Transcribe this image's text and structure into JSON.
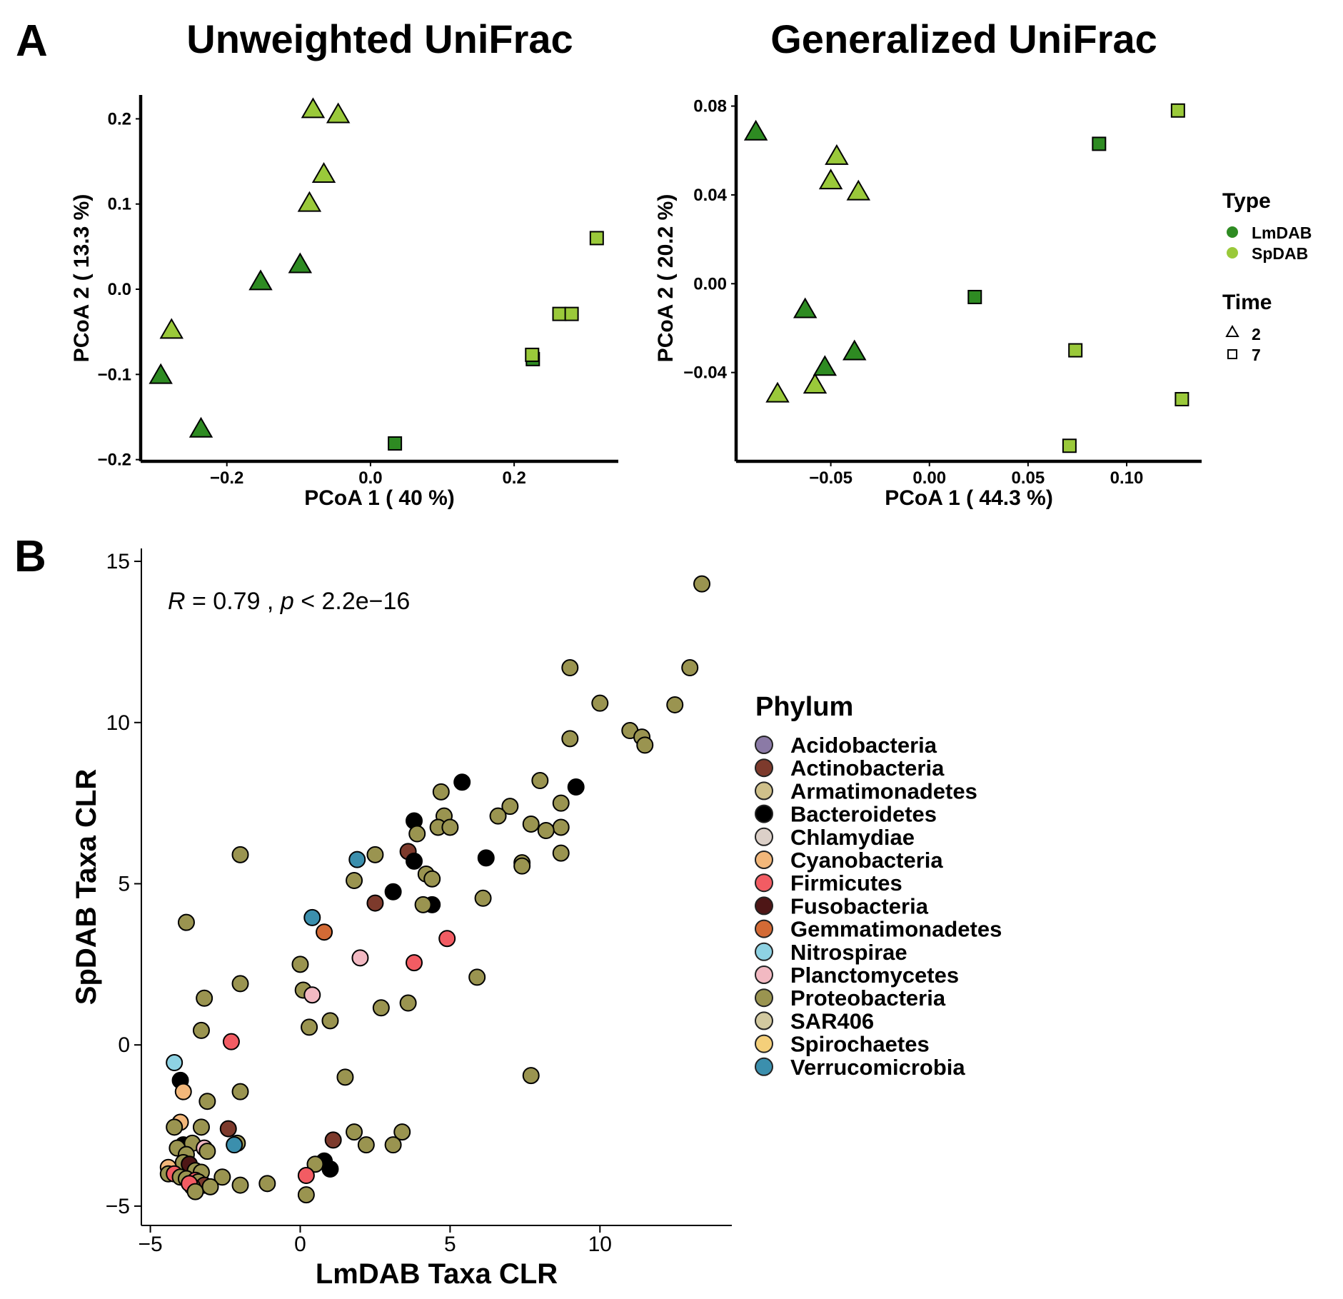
{
  "panel_labels": {
    "a": "A",
    "b": "B"
  },
  "chart_data": [
    {
      "type": "scatter",
      "title": "Unweighted UniFrac",
      "xlabel": "PCoA 1 ( 40 %)",
      "ylabel": "PCoA 2 ( 13.3 %)",
      "xlim": [
        -0.32,
        0.345
      ],
      "ylim": [
        -0.202,
        0.228
      ],
      "xticks": [
        -0.2,
        0.0,
        0.2
      ],
      "xtick_labels": [
        "−0.2",
        "0.0",
        "0.2"
      ],
      "yticks": [
        -0.2,
        -0.1,
        0.0,
        0.1,
        0.2
      ],
      "ytick_labels": [
        "−0.2",
        "−0.1",
        "0.0",
        "0.1",
        "0.2"
      ],
      "grid": false,
      "points": [
        {
          "x": -0.08,
          "y": 0.21,
          "type": "SpDAB",
          "time": "2"
        },
        {
          "x": -0.045,
          "y": 0.204,
          "type": "SpDAB",
          "time": "2"
        },
        {
          "x": -0.065,
          "y": 0.134,
          "type": "SpDAB",
          "time": "2"
        },
        {
          "x": -0.085,
          "y": 0.1,
          "type": "SpDAB",
          "time": "2"
        },
        {
          "x": -0.098,
          "y": 0.028,
          "type": "LmDAB",
          "time": "2"
        },
        {
          "x": -0.153,
          "y": 0.008,
          "type": "LmDAB",
          "time": "2"
        },
        {
          "x": -0.277,
          "y": -0.049,
          "type": "SpDAB",
          "time": "2"
        },
        {
          "x": -0.292,
          "y": -0.102,
          "type": "LmDAB",
          "time": "2"
        },
        {
          "x": -0.236,
          "y": -0.165,
          "type": "LmDAB",
          "time": "2"
        },
        {
          "x": 0.315,
          "y": 0.06,
          "type": "SpDAB",
          "time": "7"
        },
        {
          "x": 0.263,
          "y": -0.029,
          "type": "SpDAB",
          "time": "7"
        },
        {
          "x": 0.28,
          "y": -0.029,
          "type": "SpDAB",
          "time": "7"
        },
        {
          "x": 0.226,
          "y": -0.082,
          "type": "LmDAB",
          "time": "7"
        },
        {
          "x": 0.225,
          "y": -0.077,
          "type": "SpDAB",
          "time": "7"
        },
        {
          "x": 0.034,
          "y": -0.181,
          "type": "LmDAB",
          "time": "7"
        }
      ]
    },
    {
      "type": "scatter",
      "title": "Generalized UniFrac",
      "xlabel": "PCoA 1 ( 44.3 %)",
      "ylabel": "PCoA 2 ( 20.2 %)",
      "xlim": [
        -0.098,
        0.138
      ],
      "ylim": [
        -0.08,
        0.085
      ],
      "xticks": [
        -0.05,
        0.0,
        0.05,
        0.1
      ],
      "xtick_labels": [
        "−0.05",
        "0.00",
        "0.05",
        "0.10"
      ],
      "yticks": [
        -0.04,
        0.0,
        0.04,
        0.08
      ],
      "ytick_labels": [
        "−0.04",
        "0.00",
        "0.04",
        "0.08"
      ],
      "grid": false,
      "points": [
        {
          "x": -0.088,
          "y": 0.068,
          "type": "LmDAB",
          "time": "2"
        },
        {
          "x": -0.047,
          "y": 0.057,
          "type": "SpDAB",
          "time": "2"
        },
        {
          "x": -0.05,
          "y": 0.046,
          "type": "SpDAB",
          "time": "2"
        },
        {
          "x": -0.036,
          "y": 0.041,
          "type": "SpDAB",
          "time": "2"
        },
        {
          "x": -0.063,
          "y": -0.012,
          "type": "LmDAB",
          "time": "2"
        },
        {
          "x": -0.038,
          "y": -0.031,
          "type": "LmDAB",
          "time": "2"
        },
        {
          "x": -0.053,
          "y": -0.038,
          "type": "LmDAB",
          "time": "2"
        },
        {
          "x": -0.058,
          "y": -0.046,
          "type": "SpDAB",
          "time": "2"
        },
        {
          "x": -0.077,
          "y": -0.05,
          "type": "SpDAB",
          "time": "2"
        },
        {
          "x": 0.126,
          "y": 0.078,
          "type": "SpDAB",
          "time": "7"
        },
        {
          "x": 0.086,
          "y": 0.063,
          "type": "LmDAB",
          "time": "7"
        },
        {
          "x": 0.023,
          "y": -0.006,
          "type": "LmDAB",
          "time": "7"
        },
        {
          "x": 0.074,
          "y": -0.03,
          "type": "SpDAB",
          "time": "7"
        },
        {
          "x": 0.128,
          "y": -0.052,
          "type": "SpDAB",
          "time": "7"
        },
        {
          "x": 0.071,
          "y": -0.073,
          "type": "SpDAB",
          "time": "7"
        }
      ]
    },
    {
      "type": "scatter",
      "title": "",
      "xlabel": "LmDAB Taxa CLR",
      "ylabel": "SpDAB Taxa CLR",
      "xlim": [
        -5.3,
        14.4
      ],
      "ylim": [
        -5.6,
        15.4
      ],
      "xticks": [
        -5,
        0,
        5,
        10
      ],
      "xtick_labels": [
        "−5",
        "0",
        "5",
        "10"
      ],
      "yticks": [
        -5,
        0,
        5,
        10,
        15
      ],
      "ytick_labels": [
        "−5",
        "0",
        "5",
        "10",
        "15"
      ],
      "grid": false,
      "annotation": {
        "r_label": "R",
        "r_text": " = 0.79 , ",
        "p_label": "p",
        "p_text": " < 2.2e−16"
      },
      "points": [
        {
          "x": 13.4,
          "y": 14.3,
          "phylum": "Proteobacteria"
        },
        {
          "x": 9.0,
          "y": 11.7,
          "phylum": "Proteobacteria"
        },
        {
          "x": 13.0,
          "y": 11.7,
          "phylum": "Proteobacteria"
        },
        {
          "x": 10.0,
          "y": 10.6,
          "phylum": "Proteobacteria"
        },
        {
          "x": 12.5,
          "y": 10.55,
          "phylum": "Proteobacteria"
        },
        {
          "x": 11.0,
          "y": 9.75,
          "phylum": "Proteobacteria"
        },
        {
          "x": 11.4,
          "y": 9.55,
          "phylum": "Proteobacteria"
        },
        {
          "x": 11.5,
          "y": 9.3,
          "phylum": "Proteobacteria"
        },
        {
          "x": 9.0,
          "y": 9.5,
          "phylum": "Proteobacteria"
        },
        {
          "x": 8.0,
          "y": 8.2,
          "phylum": "Proteobacteria"
        },
        {
          "x": 9.2,
          "y": 8.0,
          "phylum": "Bacteroidetes"
        },
        {
          "x": 5.4,
          "y": 8.15,
          "phylum": "Bacteroidetes"
        },
        {
          "x": 4.7,
          "y": 7.85,
          "phylum": "Proteobacteria"
        },
        {
          "x": 8.7,
          "y": 7.5,
          "phylum": "Proteobacteria"
        },
        {
          "x": 7.0,
          "y": 7.4,
          "phylum": "Proteobacteria"
        },
        {
          "x": 6.6,
          "y": 7.1,
          "phylum": "Proteobacteria"
        },
        {
          "x": 4.8,
          "y": 7.1,
          "phylum": "Proteobacteria"
        },
        {
          "x": 3.8,
          "y": 6.95,
          "phylum": "Bacteroidetes"
        },
        {
          "x": 7.7,
          "y": 6.85,
          "phylum": "Proteobacteria"
        },
        {
          "x": 4.6,
          "y": 6.75,
          "phylum": "Proteobacteria"
        },
        {
          "x": 5.0,
          "y": 6.75,
          "phylum": "Proteobacteria"
        },
        {
          "x": 8.7,
          "y": 6.75,
          "phylum": "Proteobacteria"
        },
        {
          "x": 8.2,
          "y": 6.65,
          "phylum": "Proteobacteria"
        },
        {
          "x": 3.9,
          "y": 6.55,
          "phylum": "Proteobacteria"
        },
        {
          "x": 3.6,
          "y": 6.0,
          "phylum": "Actinobacteria"
        },
        {
          "x": 8.7,
          "y": 5.95,
          "phylum": "Proteobacteria"
        },
        {
          "x": 2.5,
          "y": 5.9,
          "phylum": "Proteobacteria"
        },
        {
          "x": -2.0,
          "y": 5.9,
          "phylum": "Proteobacteria"
        },
        {
          "x": 6.2,
          "y": 5.8,
          "phylum": "Bacteroidetes"
        },
        {
          "x": 1.9,
          "y": 5.75,
          "phylum": "Verrucomicrobia"
        },
        {
          "x": 3.8,
          "y": 5.7,
          "phylum": "Bacteroidetes"
        },
        {
          "x": 7.4,
          "y": 5.65,
          "phylum": "Proteobacteria"
        },
        {
          "x": 7.4,
          "y": 5.55,
          "phylum": "Proteobacteria"
        },
        {
          "x": 4.2,
          "y": 5.3,
          "phylum": "Proteobacteria"
        },
        {
          "x": 4.4,
          "y": 5.15,
          "phylum": "Proteobacteria"
        },
        {
          "x": 1.8,
          "y": 5.1,
          "phylum": "Proteobacteria"
        },
        {
          "x": 3.1,
          "y": 4.75,
          "phylum": "Bacteroidetes"
        },
        {
          "x": 6.1,
          "y": 4.55,
          "phylum": "Proteobacteria"
        },
        {
          "x": 2.5,
          "y": 4.4,
          "phylum": "Actinobacteria"
        },
        {
          "x": 4.4,
          "y": 4.35,
          "phylum": "Bacteroidetes"
        },
        {
          "x": 4.1,
          "y": 4.35,
          "phylum": "Proteobacteria"
        },
        {
          "x": 0.4,
          "y": 3.95,
          "phylum": "Verrucomicrobia"
        },
        {
          "x": -3.8,
          "y": 3.8,
          "phylum": "Proteobacteria"
        },
        {
          "x": 0.8,
          "y": 3.5,
          "phylum": "Gemmatimonadetes"
        },
        {
          "x": 4.9,
          "y": 3.3,
          "phylum": "Firmicutes"
        },
        {
          "x": 2.0,
          "y": 2.7,
          "phylum": "Planctomycetes"
        },
        {
          "x": 3.8,
          "y": 2.55,
          "phylum": "Firmicutes"
        },
        {
          "x": 0.0,
          "y": 2.5,
          "phylum": "Proteobacteria"
        },
        {
          "x": 5.9,
          "y": 2.1,
          "phylum": "Proteobacteria"
        },
        {
          "x": -2.0,
          "y": 1.9,
          "phylum": "Proteobacteria"
        },
        {
          "x": 0.1,
          "y": 1.7,
          "phylum": "Proteobacteria"
        },
        {
          "x": 0.4,
          "y": 1.55,
          "phylum": "Planctomycetes"
        },
        {
          "x": -3.2,
          "y": 1.45,
          "phylum": "Proteobacteria"
        },
        {
          "x": 3.6,
          "y": 1.3,
          "phylum": "Proteobacteria"
        },
        {
          "x": 2.7,
          "y": 1.15,
          "phylum": "Proteobacteria"
        },
        {
          "x": 1.0,
          "y": 0.75,
          "phylum": "Proteobacteria"
        },
        {
          "x": 0.3,
          "y": 0.55,
          "phylum": "Proteobacteria"
        },
        {
          "x": -3.3,
          "y": 0.45,
          "phylum": "Proteobacteria"
        },
        {
          "x": -2.3,
          "y": 0.1,
          "phylum": "Firmicutes"
        },
        {
          "x": -4.2,
          "y": -0.55,
          "phylum": "Nitrospirae"
        },
        {
          "x": 7.7,
          "y": -0.95,
          "phylum": "Proteobacteria"
        },
        {
          "x": 1.5,
          "y": -1.0,
          "phylum": "Proteobacteria"
        },
        {
          "x": -4.0,
          "y": -1.1,
          "phylum": "Bacteroidetes"
        },
        {
          "x": -2.0,
          "y": -1.45,
          "phylum": "Proteobacteria"
        },
        {
          "x": -3.9,
          "y": -1.45,
          "phylum": "Cyanobacteria"
        },
        {
          "x": -3.1,
          "y": -1.75,
          "phylum": "Proteobacteria"
        },
        {
          "x": -4.0,
          "y": -2.4,
          "phylum": "Cyanobacteria"
        },
        {
          "x": -4.2,
          "y": -2.55,
          "phylum": "Proteobacteria"
        },
        {
          "x": -3.3,
          "y": -2.55,
          "phylum": "Proteobacteria"
        },
        {
          "x": -2.4,
          "y": -2.6,
          "phylum": "Actinobacteria"
        },
        {
          "x": 1.8,
          "y": -2.7,
          "phylum": "Proteobacteria"
        },
        {
          "x": 3.4,
          "y": -2.7,
          "phylum": "Proteobacteria"
        },
        {
          "x": 1.1,
          "y": -2.95,
          "phylum": "Actinobacteria"
        },
        {
          "x": 2.2,
          "y": -3.1,
          "phylum": "Proteobacteria"
        },
        {
          "x": 3.1,
          "y": -3.1,
          "phylum": "Proteobacteria"
        },
        {
          "x": -2.1,
          "y": -3.05,
          "phylum": "Proteobacteria"
        },
        {
          "x": -2.2,
          "y": -3.1,
          "phylum": "Verrucomicrobia"
        },
        {
          "x": -3.9,
          "y": -3.1,
          "phylum": "Bacteroidetes"
        },
        {
          "x": -4.1,
          "y": -3.2,
          "phylum": "Proteobacteria"
        },
        {
          "x": -3.6,
          "y": -3.05,
          "phylum": "Proteobacteria"
        },
        {
          "x": -3.2,
          "y": -3.2,
          "phylum": "Planctomycetes"
        },
        {
          "x": -3.1,
          "y": -3.3,
          "phylum": "Proteobacteria"
        },
        {
          "x": -3.8,
          "y": -3.4,
          "phylum": "Proteobacteria"
        },
        {
          "x": 0.8,
          "y": -3.6,
          "phylum": "Bacteroidetes"
        },
        {
          "x": 0.5,
          "y": -3.7,
          "phylum": "Proteobacteria"
        },
        {
          "x": -3.9,
          "y": -3.65,
          "phylum": "Proteobacteria"
        },
        {
          "x": -3.7,
          "y": -3.7,
          "phylum": "Fusobacteria"
        },
        {
          "x": 1.0,
          "y": -3.85,
          "phylum": "Bacteroidetes"
        },
        {
          "x": -4.4,
          "y": -3.8,
          "phylum": "Cyanobacteria"
        },
        {
          "x": -3.5,
          "y": -3.9,
          "phylum": "Proteobacteria"
        },
        {
          "x": -3.3,
          "y": -3.95,
          "phylum": "Proteobacteria"
        },
        {
          "x": 0.2,
          "y": -4.05,
          "phylum": "Firmicutes"
        },
        {
          "x": -4.4,
          "y": -4.0,
          "phylum": "Proteobacteria"
        },
        {
          "x": -4.2,
          "y": -4.0,
          "phylum": "Firmicutes"
        },
        {
          "x": -4.0,
          "y": -4.1,
          "phylum": "Proteobacteria"
        },
        {
          "x": -3.8,
          "y": -4.15,
          "phylum": "Proteobacteria"
        },
        {
          "x": -2.6,
          "y": -4.1,
          "phylum": "Proteobacteria"
        },
        {
          "x": -3.5,
          "y": -4.2,
          "phylum": "Firmicutes"
        },
        {
          "x": -3.4,
          "y": -4.25,
          "phylum": "Proteobacteria"
        },
        {
          "x": -1.1,
          "y": -4.3,
          "phylum": "Proteobacteria"
        },
        {
          "x": -2.0,
          "y": -4.35,
          "phylum": "Proteobacteria"
        },
        {
          "x": -3.2,
          "y": -4.35,
          "phylum": "Actinobacteria"
        },
        {
          "x": -3.0,
          "y": -4.4,
          "phylum": "Proteobacteria"
        },
        {
          "x": -3.6,
          "y": -4.4,
          "phylum": "Proteobacteria"
        },
        {
          "x": -3.7,
          "y": -4.3,
          "phylum": "Firmicutes"
        },
        {
          "x": -3.5,
          "y": -4.55,
          "phylum": "Proteobacteria"
        },
        {
          "x": 0.2,
          "y": -4.65,
          "phylum": "Proteobacteria"
        }
      ]
    }
  ],
  "legend_type": {
    "title": "Type",
    "items": [
      {
        "label": "LmDAB",
        "color": "#2e8b22"
      },
      {
        "label": "SpDAB",
        "color": "#9ac93a"
      }
    ]
  },
  "legend_time": {
    "title": "Time",
    "items": [
      {
        "label": "2",
        "shape": "triangle"
      },
      {
        "label": "7",
        "shape": "square"
      }
    ]
  },
  "legend_phylum": {
    "title": "Phylum",
    "items": [
      {
        "label": "Acidobacteria",
        "color": "#8b7aa6"
      },
      {
        "label": "Actinobacteria",
        "color": "#7d3a2c"
      },
      {
        "label": "Armatimonadetes",
        "color": "#cfc08a"
      },
      {
        "label": "Bacteroidetes",
        "color": "#000000"
      },
      {
        "label": "Chlamydiae",
        "color": "#dcd0c8"
      },
      {
        "label": "Cyanobacteria",
        "color": "#f2b77a"
      },
      {
        "label": "Firmicutes",
        "color": "#f25c63"
      },
      {
        "label": "Fusobacteria",
        "color": "#4e1616"
      },
      {
        "label": "Gemmatimonadetes",
        "color": "#d36a35"
      },
      {
        "label": "Nitrospirae",
        "color": "#8ed2e3"
      },
      {
        "label": "Planctomycetes",
        "color": "#f2b9c2"
      },
      {
        "label": "Proteobacteria",
        "color": "#9a9450"
      },
      {
        "label": "SAR406",
        "color": "#d2c9a0"
      },
      {
        "label": "Spirochaetes",
        "color": "#f4cf7a"
      },
      {
        "label": "Verrucomicrobia",
        "color": "#3b8fad"
      }
    ]
  }
}
